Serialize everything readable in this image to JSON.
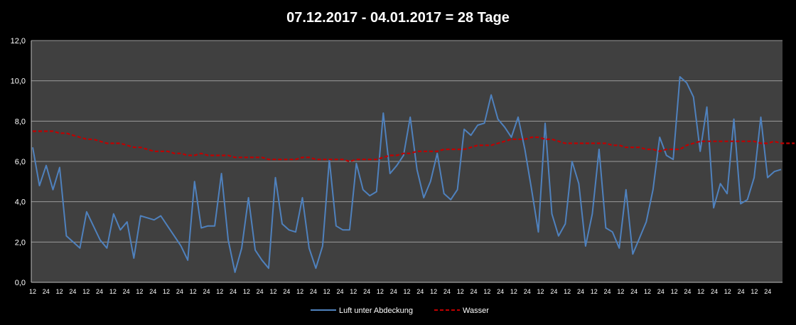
{
  "chart_data": {
    "type": "line",
    "title": "07.12.2017  - 04.01.2017  = 28 Tage",
    "xlabel": "",
    "ylabel": "",
    "ylim": [
      0,
      12
    ],
    "y_ticks": [
      "0,0",
      "2,0",
      "4,0",
      "6,0",
      "8,0",
      "10,0",
      "12,0"
    ],
    "grid": "horizontal",
    "legend_position": "bottom",
    "background_color": "#000000",
    "plot_background": "#404040",
    "x_tick_labels": [
      "12",
      "24",
      "12",
      "24",
      "12",
      "24",
      "12",
      "24",
      "12",
      "24",
      "12",
      "24",
      "12",
      "24",
      "12",
      "24",
      "12",
      "24",
      "12",
      "24",
      "12",
      "24",
      "12",
      "24",
      "12",
      "24",
      "12",
      "24",
      "12",
      "24",
      "12",
      "24",
      "12",
      "24",
      "12",
      "24",
      "12",
      "24",
      "12",
      "24",
      "12",
      "24",
      "12",
      "24",
      "12",
      "24",
      "12",
      "24",
      "12",
      "24",
      "12",
      "24",
      "12",
      "24",
      "12",
      "24"
    ],
    "series": [
      {
        "name": "Luft unter Abdeckung",
        "color": "#4f81bd",
        "style": "solid",
        "values": [
          6.7,
          4.8,
          5.8,
          4.6,
          5.7,
          2.3,
          2.0,
          1.7,
          3.5,
          2.8,
          2.1,
          1.7,
          3.4,
          2.6,
          3.0,
          1.2,
          3.3,
          3.2,
          3.1,
          3.3,
          2.8,
          2.3,
          1.8,
          1.1,
          5.0,
          2.7,
          2.8,
          2.8,
          5.4,
          2.1,
          0.5,
          1.7,
          4.2,
          1.6,
          1.1,
          0.7,
          5.2,
          2.9,
          2.6,
          2.5,
          4.2,
          1.7,
          0.7,
          1.8,
          6.1,
          2.8,
          2.6,
          2.6,
          5.9,
          4.6,
          4.3,
          4.5,
          8.4,
          5.4,
          5.8,
          6.3,
          8.2,
          5.6,
          4.2,
          5.0,
          6.4,
          4.4,
          4.1,
          4.6,
          7.6,
          7.3,
          7.8,
          7.9,
          9.3,
          8.1,
          7.7,
          7.2,
          8.2,
          6.6,
          4.6,
          2.5,
          7.9,
          3.4,
          2.3,
          2.9,
          6.0,
          4.9,
          1.8,
          3.4,
          6.6,
          2.7,
          2.5,
          1.7,
          4.6,
          1.4,
          2.2,
          3.0,
          4.6,
          7.2,
          6.3,
          6.1,
          10.2,
          9.9,
          9.2,
          6.5,
          8.7,
          3.7,
          4.9,
          4.4,
          8.1,
          3.9,
          4.1,
          5.2,
          8.2,
          5.2,
          5.5,
          5.6
        ]
      },
      {
        "name": "Wasser",
        "color": "#c00000",
        "style": "dashed",
        "values": [
          7.5,
          7.5,
          7.5,
          7.5,
          7.4,
          7.4,
          7.3,
          7.2,
          7.1,
          7.1,
          7.0,
          6.9,
          6.9,
          6.9,
          6.8,
          6.7,
          6.7,
          6.6,
          6.5,
          6.5,
          6.5,
          6.4,
          6.4,
          6.3,
          6.3,
          6.4,
          6.3,
          6.3,
          6.3,
          6.3,
          6.2,
          6.2,
          6.2,
          6.2,
          6.2,
          6.1,
          6.1,
          6.1,
          6.1,
          6.1,
          6.2,
          6.2,
          6.1,
          6.1,
          6.1,
          6.1,
          6.1,
          6.0,
          6.1,
          6.1,
          6.1,
          6.1,
          6.2,
          6.3,
          6.3,
          6.4,
          6.4,
          6.5,
          6.5,
          6.5,
          6.5,
          6.6,
          6.6,
          6.6,
          6.6,
          6.7,
          6.8,
          6.8,
          6.8,
          6.9,
          7.0,
          7.1,
          7.1,
          7.1,
          7.2,
          7.2,
          7.1,
          7.1,
          7.0,
          6.9,
          6.9,
          6.9,
          6.9,
          6.9,
          6.9,
          6.9,
          6.8,
          6.8,
          6.7,
          6.7,
          6.7,
          6.6,
          6.6,
          6.5,
          6.6,
          6.6,
          6.6,
          6.8,
          6.9,
          7.0,
          7.0,
          7.0,
          7.0,
          7.0,
          7.0,
          7.0,
          7.0,
          7.0,
          6.9,
          6.9,
          7.0,
          6.9,
          6.9,
          6.9
        ]
      }
    ]
  }
}
